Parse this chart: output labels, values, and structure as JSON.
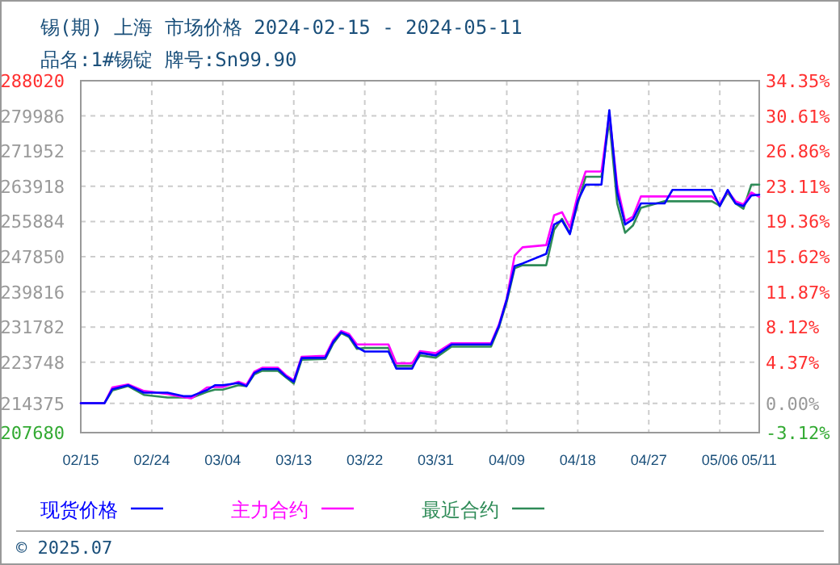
{
  "chart_data": {
    "type": "line",
    "title": "锡(期) 上海 市场价格 2024-02-15 - 2024-05-11",
    "subtitle": "品名:1#锡锭 牌号:Sn99.90",
    "annotations": [
      "© 2025.07"
    ],
    "x": [
      "2024-02-15",
      "2024-02-18",
      "2024-02-19",
      "2024-02-21",
      "2024-02-23",
      "2024-02-26",
      "2024-02-28",
      "2024-02-29",
      "2024-03-02",
      "2024-03-03",
      "2024-03-04",
      "2024-03-06",
      "2024-03-07",
      "2024-03-08",
      "2024-03-09",
      "2024-03-11",
      "2024-03-12",
      "2024-03-13",
      "2024-03-14",
      "2024-03-17",
      "2024-03-18",
      "2024-03-19",
      "2024-03-20",
      "2024-03-21",
      "2024-03-22",
      "2024-03-25",
      "2024-03-26",
      "2024-03-28",
      "2024-03-29",
      "2024-03-31",
      "2024-04-02",
      "2024-04-07",
      "2024-04-08",
      "2024-04-09",
      "2024-04-10",
      "2024-04-11",
      "2024-04-14",
      "2024-04-15",
      "2024-04-16",
      "2024-04-17",
      "2024-04-18",
      "2024-04-19",
      "2024-04-21",
      "2024-04-22",
      "2024-04-23",
      "2024-04-24",
      "2024-04-25",
      "2024-04-26",
      "2024-04-29",
      "2024-04-30",
      "2024-05-05",
      "2024-05-06",
      "2024-05-07",
      "2024-05-08",
      "2024-05-09",
      "2024-05-10",
      "2024-05-11"
    ],
    "series": [
      {
        "name": "现货价格",
        "color": "#0000ff",
        "values": [
          214400,
          214400,
          217600,
          218500,
          216800,
          216800,
          216000,
          216000,
          217400,
          218500,
          218500,
          219000,
          218300,
          221300,
          222200,
          222200,
          220500,
          219300,
          224700,
          224800,
          228400,
          230600,
          229800,
          227200,
          226200,
          226200,
          222300,
          222300,
          225900,
          225300,
          227800,
          227800,
          232000,
          238100,
          245700,
          246300,
          248500,
          255200,
          256100,
          253000,
          260600,
          264300,
          264300,
          281300,
          262500,
          255200,
          256400,
          260000,
          260000,
          263100,
          263100,
          259400,
          263100,
          260000,
          259400,
          261800,
          262000
        ]
      },
      {
        "name": "主力合约",
        "color": "#ff00ff",
        "values": [
          214400,
          214400,
          218000,
          218700,
          217200,
          216500,
          215800,
          215500,
          218000,
          218100,
          218100,
          219300,
          218600,
          221600,
          222500,
          222500,
          220800,
          219600,
          225000,
          225200,
          228800,
          230900,
          230200,
          227800,
          227800,
          227800,
          223500,
          223500,
          226300,
          225800,
          228100,
          228100,
          232300,
          238300,
          248100,
          250000,
          250500,
          257300,
          258000,
          254500,
          262000,
          267300,
          267300,
          280500,
          264000,
          256000,
          257000,
          261600,
          261600,
          261600,
          261600,
          259900,
          262800,
          260500,
          259800,
          262500,
          261500
        ]
      },
      {
        "name": "最近合约",
        "color": "#2e8b57",
        "values": [
          214400,
          214400,
          217300,
          218300,
          216300,
          215700,
          215700,
          215600,
          217000,
          217500,
          217500,
          218500,
          218300,
          221000,
          221800,
          221800,
          220300,
          218900,
          224300,
          224500,
          228000,
          230400,
          229500,
          226800,
          227000,
          227000,
          222900,
          222900,
          225300,
          224800,
          227300,
          227300,
          231700,
          237600,
          245200,
          245900,
          245900,
          254000,
          256500,
          253200,
          260000,
          266100,
          266100,
          279000,
          260000,
          253300,
          255000,
          259000,
          260500,
          260500,
          260500,
          259500,
          262500,
          260000,
          258800,
          264300,
          264300
        ]
      }
    ],
    "xlim": [
      "2024-02-15",
      "2024-05-11"
    ],
    "xticks": [
      {
        "value": "2024-02-15",
        "label": "02/15"
      },
      {
        "value": "2024-02-24",
        "label": "02/24"
      },
      {
        "value": "2024-03-04",
        "label": "03/04"
      },
      {
        "value": "2024-03-13",
        "label": "03/13"
      },
      {
        "value": "2024-03-22",
        "label": "03/22"
      },
      {
        "value": "2024-03-31",
        "label": "03/31"
      },
      {
        "value": "2024-04-09",
        "label": "04/09"
      },
      {
        "value": "2024-04-18",
        "label": "04/18"
      },
      {
        "value": "2024-04-27",
        "label": "04/27"
      },
      {
        "value": "2024-05-06",
        "label": "05/06"
      },
      {
        "value": "2024-05-11",
        "label": "05/11"
      }
    ],
    "ylim": [
      207680,
      288020
    ],
    "yticks": [
      207680,
      214375,
      223748,
      231782,
      239816,
      247850,
      255884,
      263918,
      271952,
      279986,
      288020
    ],
    "y2lim": [
      -3.12,
      34.35
    ],
    "y2ticks": [
      {
        "value": -3.12,
        "label": "-3.12%"
      },
      {
        "value": 0,
        "label": "0.00%"
      },
      {
        "value": 4.37,
        "label": "4.37%"
      },
      {
        "value": 8.12,
        "label": "8.12%"
      },
      {
        "value": 11.87,
        "label": "11.87%"
      },
      {
        "value": 15.62,
        "label": "15.62%"
      },
      {
        "value": 19.36,
        "label": "19.36%"
      },
      {
        "value": 23.11,
        "label": "23.11%"
      },
      {
        "value": 26.86,
        "label": "26.86%"
      },
      {
        "value": 30.61,
        "label": "30.61%"
      },
      {
        "value": 34.35,
        "label": "34.35%"
      }
    ],
    "grid": true,
    "legend": "bottom",
    "line_style": "solid",
    "marker": "none"
  }
}
